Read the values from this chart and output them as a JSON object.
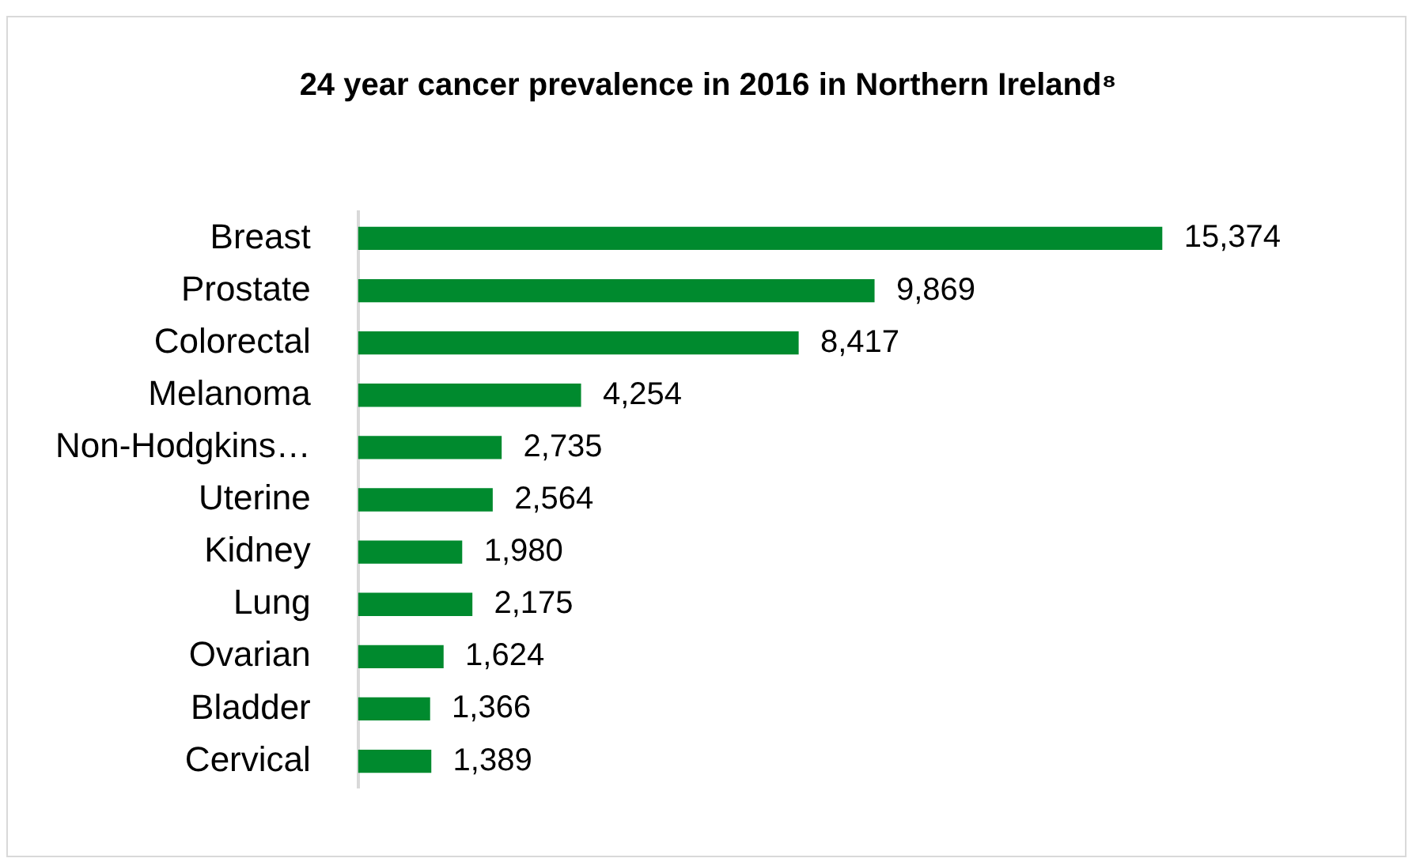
{
  "chart_data": {
    "type": "bar",
    "orientation": "horizontal",
    "title": "24 year cancer prevalence in 2016 in Northern Ireland⁸",
    "categories": [
      "Breast",
      "Prostate",
      "Colorectal",
      "Melanoma",
      "Non-Hodgkins…",
      "Uterine",
      "Kidney",
      "Lung",
      "Ovarian",
      "Bladder",
      "Cervical"
    ],
    "values": [
      15374,
      9869,
      8417,
      4254,
      2735,
      2564,
      1980,
      2175,
      1624,
      1366,
      1389
    ],
    "value_labels": [
      "15,374",
      "9,869",
      "8,417",
      "4,254",
      "2,735",
      "2,564",
      "1,980",
      "2,175",
      "1,624",
      "1,366",
      "1,389"
    ],
    "color": "#008a2e"
  }
}
